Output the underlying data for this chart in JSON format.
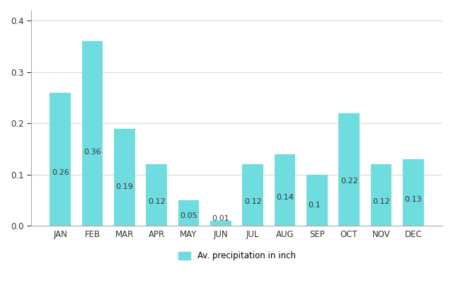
{
  "months": [
    "JAN",
    "FEB",
    "MAR",
    "APR",
    "MAY",
    "JUN",
    "JUL",
    "AUG",
    "SEP",
    "OCT",
    "NOV",
    "DEC"
  ],
  "values": [
    0.26,
    0.36,
    0.19,
    0.12,
    0.05,
    0.01,
    0.12,
    0.14,
    0.1,
    0.22,
    0.12,
    0.13
  ],
  "bar_color": "#6FDDDF",
  "background_color": "#ffffff",
  "ylim": [
    0,
    0.42
  ],
  "yticks": [
    0,
    0.1,
    0.2,
    0.3,
    0.4
  ],
  "legend_label": "Av. precipitation in inch",
  "label_fontsize": 8,
  "tick_fontsize": 8.5,
  "grid_color": "#d8d8d8",
  "text_color": "#333333",
  "spine_color": "#aaaaaa"
}
